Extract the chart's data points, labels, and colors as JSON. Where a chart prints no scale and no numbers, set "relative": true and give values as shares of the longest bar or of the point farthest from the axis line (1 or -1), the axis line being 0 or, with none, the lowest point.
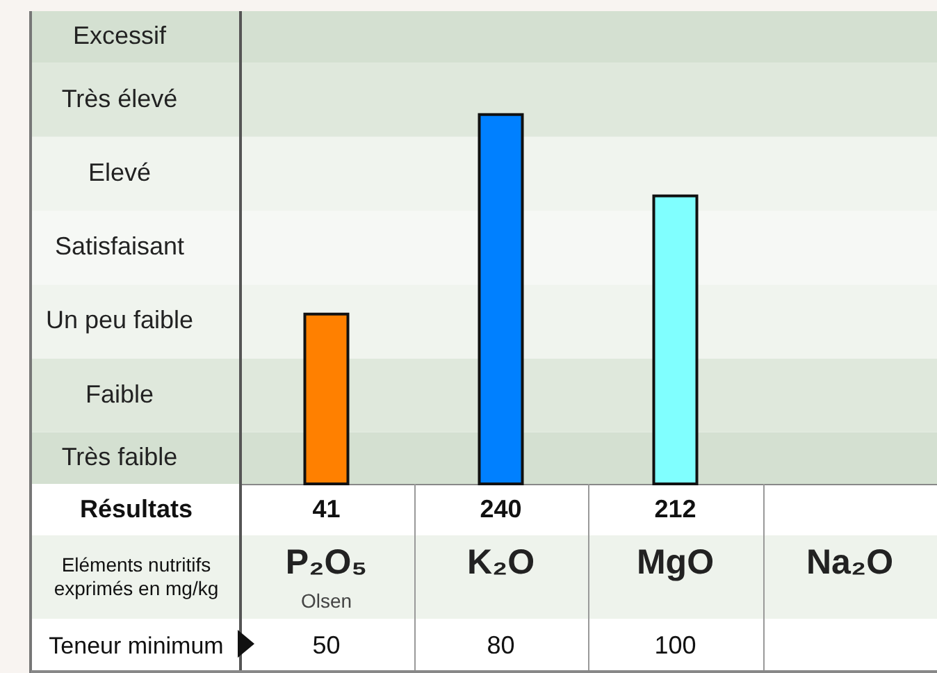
{
  "chart_data": {
    "type": "bar",
    "categories": [
      "P₂O₅",
      "K₂O",
      "MgO",
      "Na₂O"
    ],
    "values": [
      0.46,
      1,
      0.78,
      null
    ],
    "relative": true,
    "colors": [
      "#ff8000",
      "#0080ff",
      "#80ffff",
      null
    ],
    "bands": [
      {
        "axis": "y",
        "from": 0,
        "to": 0.14,
        "label": "Très faible",
        "color": "#d4e0d1"
      },
      {
        "axis": "y",
        "from": 0.14,
        "to": 0.34,
        "label": "Faible",
        "color": "#dfe8dc"
      },
      {
        "axis": "y",
        "from": 0.34,
        "to": 0.54,
        "label": "Un peu faible",
        "color": "#f0f4ee"
      },
      {
        "axis": "y",
        "from": 0.54,
        "to": 0.74,
        "label": "Satisfaisant",
        "color": "#f6f8f5"
      },
      {
        "axis": "y",
        "from": 0.74,
        "to": 0.94,
        "label": "Elevé",
        "color": "#f0f4ee"
      },
      {
        "axis": "y",
        "from": 0.94,
        "to": 1.14,
        "label": "Très élevé",
        "color": "#dfe8dc"
      },
      {
        "axis": "y",
        "from": 1.14,
        "to": 1.28,
        "label": "Excessif",
        "color": "#d4e0d1"
      }
    ],
    "annotations": [
      "Résultats",
      "41",
      "240",
      "212",
      "Eléments nutritifs exprimés en mg/kg",
      "Olsen",
      "Teneur minimum",
      "50",
      "80",
      "100"
    ]
  }
}
